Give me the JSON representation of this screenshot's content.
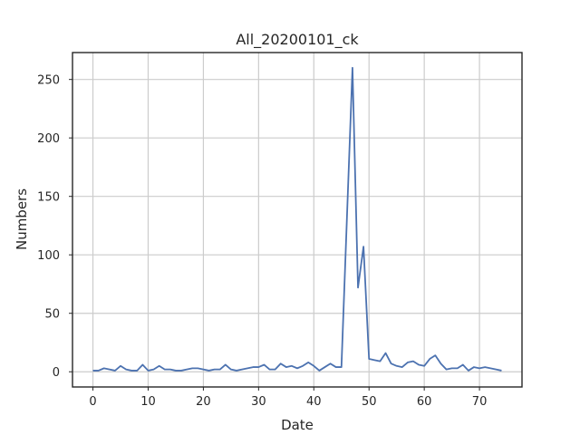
{
  "chart_data": {
    "type": "line",
    "title": "All_20200101_ck",
    "xlabel": "Date",
    "ylabel": "Numbers",
    "xlim": [
      -3.7,
      77.7
    ],
    "ylim": [
      -13,
      273
    ],
    "xticks": [
      0,
      10,
      20,
      30,
      40,
      50,
      60,
      70
    ],
    "yticks": [
      0,
      50,
      100,
      150,
      200,
      250
    ],
    "grid": true,
    "legend": "none",
    "colors": {
      "line": "#4c72b0"
    },
    "series": [
      {
        "x": [
          0,
          1,
          2,
          3,
          4,
          5,
          6,
          7,
          8,
          9,
          10,
          11,
          12,
          13,
          14,
          15,
          16,
          17,
          18,
          19,
          20,
          21,
          22,
          23,
          24,
          25,
          26,
          27,
          28,
          29,
          30,
          31,
          32,
          33,
          34,
          35,
          36,
          37,
          38,
          39,
          40,
          41,
          42,
          43,
          44,
          45,
          46,
          47,
          48,
          49,
          50,
          51,
          52,
          53,
          54,
          55,
          56,
          57,
          58,
          59,
          60,
          61,
          62,
          63,
          64,
          65,
          66,
          67,
          68,
          69,
          70,
          71,
          72,
          73,
          74
        ],
        "values": [
          1,
          1,
          3,
          2,
          1,
          5,
          2,
          1,
          1,
          6,
          1,
          2,
          5,
          2,
          2,
          1,
          1,
          2,
          3,
          3,
          2,
          1,
          2,
          2,
          6,
          2,
          1,
          2,
          3,
          4,
          4,
          6,
          2,
          2,
          7,
          4,
          5,
          3,
          5,
          8,
          5,
          1,
          4,
          7,
          4,
          4,
          132,
          260,
          72,
          107,
          11,
          10,
          9,
          16,
          7,
          5,
          4,
          8,
          9,
          6,
          5,
          11,
          14,
          7,
          2,
          3,
          3,
          6,
          1,
          4,
          3,
          4,
          3,
          2,
          1
        ]
      }
    ]
  }
}
